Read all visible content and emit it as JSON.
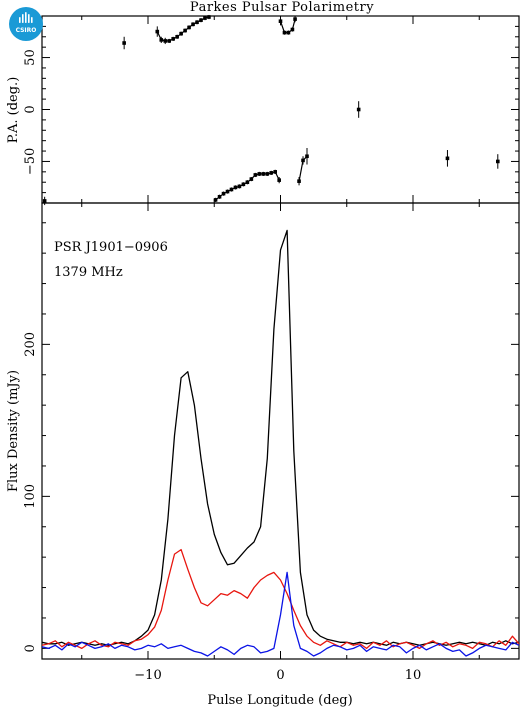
{
  "chart_data": [
    {
      "type": "scatter",
      "title": "Parkes Pulsar Polarimetry",
      "xlabel": "",
      "ylabel": "P.A. (deg.)",
      "xlim": [
        -18,
        18
      ],
      "ylim": [
        -90,
        90
      ],
      "yticks": [
        "50",
        "0",
        "−50"
      ],
      "series": [
        {
          "points": [
            {
              "x": -17.8,
              "y": -88,
              "err": 4
            },
            {
              "x": -11.8,
              "y": 64,
              "err": 6
            },
            {
              "x": -9.3,
              "y": 75,
              "err": 5
            },
            {
              "x": -9.0,
              "y": 67,
              "err": 3
            },
            {
              "x": -8.7,
              "y": 66,
              "err": 3
            },
            {
              "x": -8.4,
              "y": 66,
              "err": 2
            },
            {
              "x": -8.1,
              "y": 68,
              "err": 2
            },
            {
              "x": -7.8,
              "y": 70,
              "err": 2
            },
            {
              "x": -7.5,
              "y": 73,
              "err": 2
            },
            {
              "x": -7.2,
              "y": 76,
              "err": 2
            },
            {
              "x": -6.9,
              "y": 79,
              "err": 2
            },
            {
              "x": -6.6,
              "y": 82,
              "err": 2
            },
            {
              "x": -6.3,
              "y": 84,
              "err": 2
            },
            {
              "x": -6.0,
              "y": 86,
              "err": 2
            },
            {
              "x": -5.7,
              "y": 88,
              "err": 2
            },
            {
              "x": -5.4,
              "y": 89,
              "err": 2
            },
            {
              "x": -4.9,
              "y": -87,
              "err": 2
            },
            {
              "x": -4.6,
              "y": -84,
              "err": 2
            },
            {
              "x": -4.3,
              "y": -81,
              "err": 2
            },
            {
              "x": -4.0,
              "y": -79,
              "err": 2
            },
            {
              "x": -3.7,
              "y": -77,
              "err": 2
            },
            {
              "x": -3.4,
              "y": -75,
              "err": 2
            },
            {
              "x": -3.1,
              "y": -74,
              "err": 2
            },
            {
              "x": -2.8,
              "y": -72,
              "err": 2
            },
            {
              "x": -2.5,
              "y": -70,
              "err": 2
            },
            {
              "x": -2.2,
              "y": -67,
              "err": 2
            },
            {
              "x": -1.9,
              "y": -63,
              "err": 2
            },
            {
              "x": -1.6,
              "y": -62,
              "err": 2
            },
            {
              "x": -1.3,
              "y": -62,
              "err": 2
            },
            {
              "x": -1.0,
              "y": -62,
              "err": 2
            },
            {
              "x": -0.7,
              "y": -61,
              "err": 2
            },
            {
              "x": -0.4,
              "y": -60,
              "err": 2
            },
            {
              "x": -0.1,
              "y": -68,
              "err": 3
            },
            {
              "x": 0.0,
              "y": 85,
              "err": 4
            },
            {
              "x": 0.3,
              "y": 74,
              "err": 2
            },
            {
              "x": 0.6,
              "y": 74,
              "err": 2
            },
            {
              "x": 0.9,
              "y": 77,
              "err": 2
            },
            {
              "x": 1.1,
              "y": 87,
              "err": 3
            },
            {
              "x": 1.4,
              "y": -69,
              "err": 4
            },
            {
              "x": 1.7,
              "y": -49,
              "err": 4
            },
            {
              "x": 2.0,
              "y": -45,
              "err": 8
            },
            {
              "x": 5.9,
              "y": 0,
              "err": 8
            },
            {
              "x": 12.6,
              "y": -47,
              "err": 8
            },
            {
              "x": 16.4,
              "y": -50,
              "err": 7
            }
          ],
          "connected_runs": [
            [
              2,
              15
            ],
            [
              16,
              32
            ],
            [
              33,
              37
            ],
            [
              38,
              40
            ]
          ]
        }
      ]
    },
    {
      "type": "line",
      "xlabel": "Pulse Longitude (deg)",
      "ylabel": "Flux Density (mJy)",
      "xlim": [
        -18,
        18
      ],
      "ylim": [
        -7,
        293
      ],
      "xticks": [
        "−10",
        "0",
        "10"
      ],
      "yticks": [
        "0",
        "100",
        "200"
      ],
      "annotations": [
        "PSR J1901−0906",
        "1379 MHz"
      ],
      "x": [
        -18.0,
        -17.5,
        -17.0,
        -16.5,
        -16.0,
        -15.5,
        -15.0,
        -14.5,
        -14.0,
        -13.5,
        -13.0,
        -12.5,
        -12.0,
        -11.5,
        -11.0,
        -10.5,
        -10.0,
        -9.5,
        -9.0,
        -8.5,
        -8.0,
        -7.5,
        -7.0,
        -6.5,
        -6.0,
        -5.5,
        -5.0,
        -4.5,
        -4.0,
        -3.5,
        -3.0,
        -2.5,
        -2.0,
        -1.5,
        -1.0,
        -0.5,
        0.0,
        0.5,
        1.0,
        1.5,
        2.0,
        2.5,
        3.0,
        3.5,
        4.0,
        4.5,
        5.0,
        5.5,
        6.0,
        6.5,
        7.0,
        7.5,
        8.0,
        8.5,
        9.0,
        9.5,
        10.0,
        10.5,
        11.0,
        11.5,
        12.0,
        12.5,
        13.0,
        13.5,
        14.0,
        14.5,
        15.0,
        15.5,
        16.0,
        16.5,
        17.0,
        17.5,
        18.0
      ],
      "series": [
        {
          "color": "#000000",
          "values": [
            4,
            3,
            3,
            4,
            2,
            3,
            4,
            3,
            2,
            3,
            2,
            3,
            4,
            3,
            5,
            8,
            12,
            22,
            45,
            85,
            140,
            178,
            182,
            160,
            125,
            95,
            75,
            63,
            55,
            56,
            61,
            66,
            70,
            80,
            125,
            210,
            262,
            275,
            130,
            50,
            22,
            12,
            8,
            6,
            5,
            4,
            4,
            3,
            4,
            3,
            4,
            3,
            2,
            4,
            3,
            4,
            3,
            2,
            3,
            4,
            3,
            2,
            3,
            4,
            3,
            4,
            3,
            2,
            4,
            3,
            5,
            3,
            4
          ]
        },
        {
          "color": "#e8160f",
          "values": [
            2,
            3,
            5,
            1,
            4,
            2,
            0,
            3,
            5,
            2,
            1,
            4,
            3,
            2,
            5,
            6,
            9,
            14,
            25,
            45,
            62,
            65,
            52,
            40,
            30,
            28,
            32,
            36,
            35,
            38,
            36,
            33,
            40,
            45,
            48,
            50,
            45,
            36,
            25,
            15,
            8,
            4,
            2,
            5,
            3,
            1,
            4,
            2,
            3,
            0,
            4,
            2,
            5,
            1,
            3,
            4,
            2,
            0,
            3,
            5,
            2,
            4,
            1,
            3,
            2,
            0,
            4,
            3,
            1,
            5,
            2,
            8,
            3
          ]
        },
        {
          "color": "#0b14e6",
          "values": [
            1,
            0,
            2,
            -1,
            3,
            1,
            4,
            2,
            0,
            1,
            3,
            0,
            2,
            1,
            -1,
            0,
            2,
            1,
            3,
            0,
            1,
            2,
            0,
            -2,
            -3,
            -5,
            -2,
            1,
            -1,
            -4,
            0,
            2,
            1,
            -3,
            -2,
            0,
            22,
            50,
            15,
            0,
            -2,
            -5,
            -3,
            0,
            2,
            1,
            -1,
            0,
            2,
            -2,
            1,
            0,
            -1,
            2,
            1,
            -3,
            0,
            2,
            -1,
            1,
            3,
            0,
            -2,
            -1,
            -5,
            -3,
            0,
            2,
            1,
            0,
            -1,
            4,
            2
          ]
        }
      ]
    }
  ]
}
